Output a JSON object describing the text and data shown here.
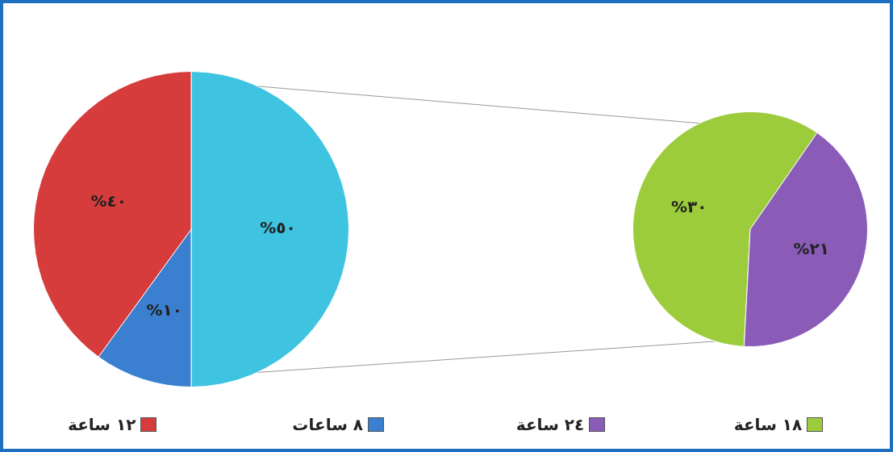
{
  "chart_data": [
    {
      "type": "pie",
      "categories": [
        null,
        "٨ ساعات",
        "١٢ ساعة"
      ],
      "values": [
        50,
        10,
        40
      ],
      "colors": [
        "#3ec3e0",
        "#3a7fd0",
        "#d63c3c"
      ],
      "value_labels": [
        "%٥٠",
        "%١٠",
        "%٤٠"
      ],
      "legend": "bottom"
    },
    {
      "type": "pie",
      "categories": [
        "١٨ ساعة",
        "٢٤ ساعة"
      ],
      "values": [
        30,
        21
      ],
      "colors": [
        "#9ccc3c",
        "#8a5cb8"
      ],
      "value_labels": [
        "%٣٠",
        "%٢١"
      ],
      "legend": "bottom"
    }
  ]
}
